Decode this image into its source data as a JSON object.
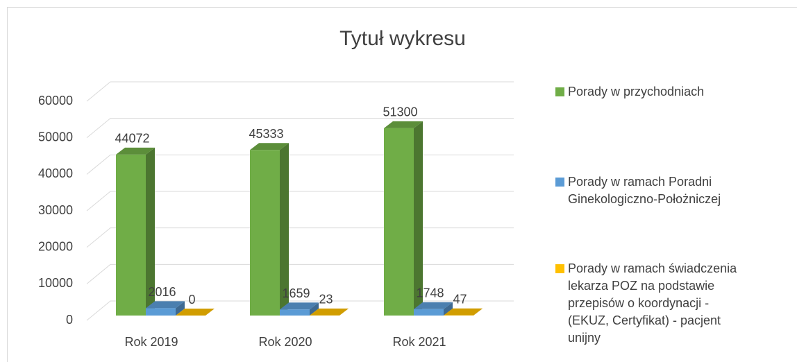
{
  "chart_data": {
    "type": "bar3d",
    "title": "Tytuł wykresu",
    "categories": [
      "Rok 2019",
      "Rok 2020",
      "Rok 2021"
    ],
    "series": [
      {
        "name": "Porady w przychodniach",
        "color": "#70ad47",
        "values": [
          44072,
          45333,
          51300
        ]
      },
      {
        "name": "Porady w ramach Poradni Ginekologiczno-Położniczej",
        "color": "#5b9bd5",
        "values": [
          2016,
          1659,
          1748
        ]
      },
      {
        "name": "Porady w ramach świadczenia lekarza POZ na podstawie przepisów o koordynacji - (EKUZ, Certyfikat) - pacjent unijny",
        "color": "#ffc000",
        "values": [
          0,
          23,
          47
        ]
      }
    ],
    "ylim": [
      0,
      60000
    ],
    "yticks": [
      0,
      10000,
      20000,
      30000,
      40000,
      50000,
      60000
    ],
    "grid": true,
    "legend": "right"
  }
}
